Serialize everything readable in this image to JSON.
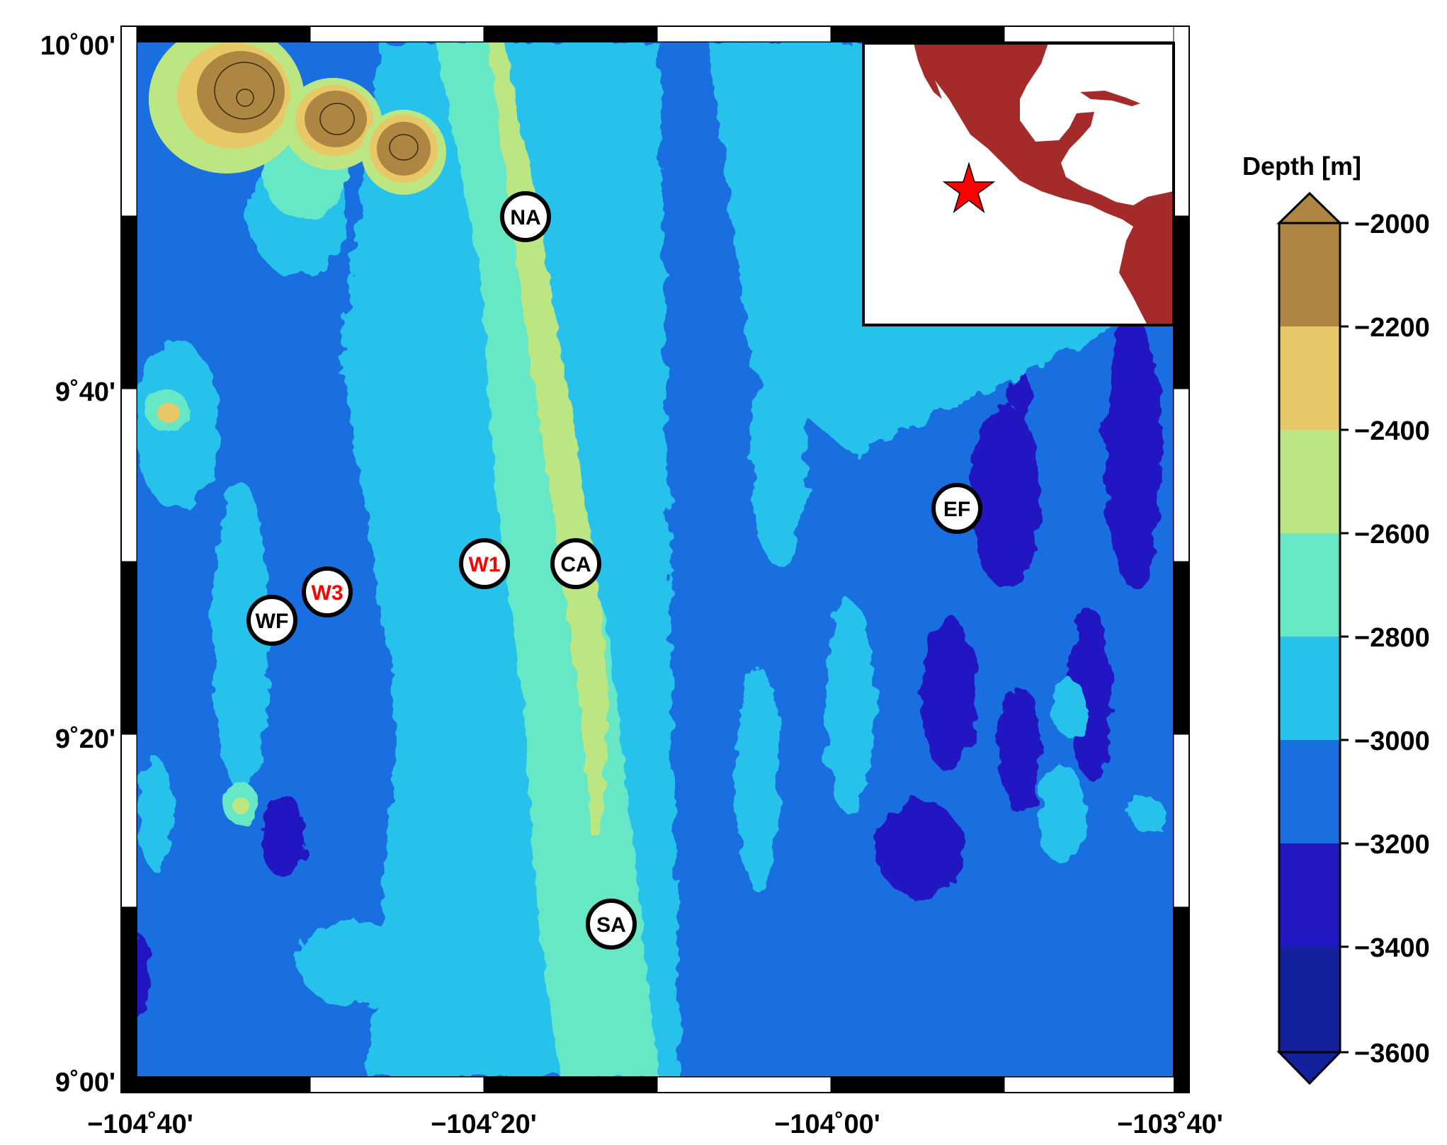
{
  "figure": {
    "colorbar_title": "Depth [m]",
    "lat_ticks": [
      "10˚00'",
      "9˚40'",
      "9˚20'",
      "9˚00'"
    ],
    "lon_ticks": [
      "−104˚40'",
      "−104˚20'",
      "−104˚00'",
      "−103˚40'"
    ],
    "depth_ticks": [
      "−2000",
      "−2200",
      "−2400",
      "−2600",
      "−2800",
      "−3000",
      "−3200",
      "−3400",
      "−3600"
    ],
    "depth_colors": [
      "#ad8742",
      "#e8c866",
      "#bce681",
      "#66e8c7",
      "#27c2ec",
      "#1a6fe0",
      "#2218c2",
      "#13219a"
    ],
    "land_color": "#a52a2a",
    "star_color": "#ff0000",
    "sites": [
      {
        "label": "NA",
        "color": "#000000"
      },
      {
        "label": "W1",
        "color": "#ff0000"
      },
      {
        "label": "CA",
        "color": "#000000"
      },
      {
        "label": "EF",
        "color": "#000000"
      },
      {
        "label": "W3",
        "color": "#ff0000"
      },
      {
        "label": "WF",
        "color": "#000000"
      },
      {
        "label": "SA",
        "color": "#000000"
      }
    ]
  }
}
